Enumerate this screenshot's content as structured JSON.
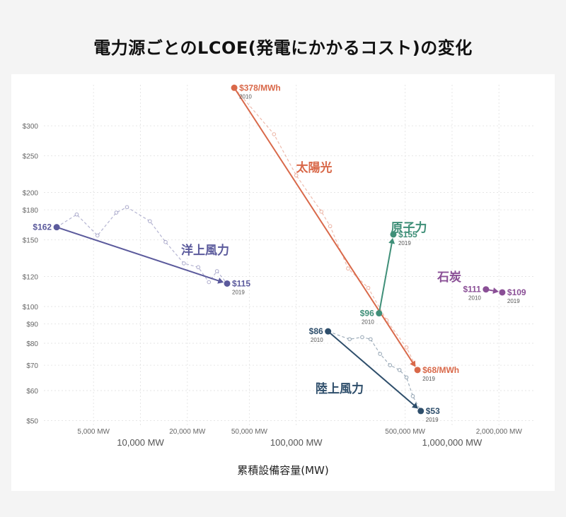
{
  "title": "電力源ごとのLCOE(発電にかかるコスト)の変化",
  "chart_data": {
    "type": "scatter",
    "title": "電力源ごとのLCOE(発電にかかるコスト)の変化",
    "xlabel": "累積設備容量(MW)",
    "ylabel": "",
    "x_scale": "log",
    "y_scale": "log",
    "xlim": [
      2400,
      3400000
    ],
    "ylim": [
      48,
      385
    ],
    "grid": true,
    "x_ticks_minor": [
      {
        "value": 5000,
        "label": "5,000 MW"
      },
      {
        "value": 20000,
        "label": "20,000 MW"
      },
      {
        "value": 50000,
        "label": "50,000 MW"
      },
      {
        "value": 500000,
        "label": "500,000 MW"
      },
      {
        "value": 2000000,
        "label": "2,000,000 MW"
      }
    ],
    "x_ticks_major": [
      {
        "value": 10000,
        "label": "10,000 MW"
      },
      {
        "value": 100000,
        "label": "100,000 MW"
      },
      {
        "value": 1000000,
        "label": "1,000,000 MW"
      }
    ],
    "y_ticks": [
      {
        "value": 300,
        "label": "$300"
      },
      {
        "value": 250,
        "label": "$250"
      },
      {
        "value": 200,
        "label": "$200"
      },
      {
        "value": 180,
        "label": "$180"
      },
      {
        "value": 150,
        "label": "$150"
      },
      {
        "value": 120,
        "label": "$120"
      },
      {
        "value": 100,
        "label": "$100"
      },
      {
        "value": 90,
        "label": "$90"
      },
      {
        "value": 80,
        "label": "$80"
      },
      {
        "value": 70,
        "label": "$70"
      },
      {
        "value": 60,
        "label": "$60"
      },
      {
        "value": 50,
        "label": "$50"
      }
    ],
    "series": [
      {
        "name": "太陽光",
        "color": "#d9694a",
        "start": {
          "x": 40000,
          "y": 378,
          "value_label": "$378/MWh",
          "year": "2010",
          "label_side": "right"
        },
        "end": {
          "x": 600000,
          "y": 68,
          "value_label": "$68/MWh",
          "year": "2019",
          "label_side": "right"
        },
        "annual": [
          [
            40000,
            378
          ],
          [
            72000,
            285
          ],
          [
            100000,
            222
          ],
          [
            145000,
            178
          ],
          [
            165000,
            163
          ],
          [
            215000,
            126
          ],
          [
            290000,
            112
          ],
          [
            380000,
            92
          ],
          [
            510000,
            78
          ],
          [
            600000,
            68
          ]
        ]
      },
      {
        "name": "洋上風力",
        "color": "#5b5a9c",
        "start": {
          "x": 2900,
          "y": 162,
          "value_label": "$162",
          "year": "",
          "label_side": "left"
        },
        "end": {
          "x": 36000,
          "y": 115,
          "value_label": "$115",
          "year": "2019",
          "label_side": "right"
        },
        "annual": [
          [
            2900,
            162
          ],
          [
            3900,
            175
          ],
          [
            5300,
            154
          ],
          [
            7000,
            177
          ],
          [
            8200,
            183
          ],
          [
            11500,
            168
          ],
          [
            14500,
            148
          ],
          [
            19000,
            130
          ],
          [
            23500,
            127
          ],
          [
            27500,
            116
          ],
          [
            31000,
            124
          ],
          [
            36000,
            115
          ]
        ]
      },
      {
        "name": "陸上風力",
        "color": "#2e4e6b",
        "start": {
          "x": 160000,
          "y": 86,
          "value_label": "$86",
          "year": "2010",
          "label_side": "left"
        },
        "end": {
          "x": 630000,
          "y": 53,
          "value_label": "$53",
          "year": "2019",
          "label_side": "right"
        },
        "annual": [
          [
            160000,
            86
          ],
          [
            220000,
            82
          ],
          [
            265000,
            83
          ],
          [
            300000,
            82
          ],
          [
            345000,
            75
          ],
          [
            400000,
            70
          ],
          [
            460000,
            68
          ],
          [
            510000,
            65
          ],
          [
            560000,
            58
          ],
          [
            630000,
            53
          ]
        ]
      },
      {
        "name": "原子力",
        "color": "#3f8f78",
        "start": {
          "x": 340000,
          "y": 96,
          "value_label": "$96",
          "year": "2010",
          "label_side": "left"
        },
        "end": {
          "x": 420000,
          "y": 155,
          "value_label": "$155",
          "year": "2019",
          "label_side": "right"
        },
        "annual": []
      },
      {
        "name": "石炭",
        "color": "#8a4f96",
        "start": {
          "x": 1650000,
          "y": 111,
          "value_label": "$111",
          "year": "2010",
          "label_side": "left"
        },
        "end": {
          "x": 2100000,
          "y": 109,
          "value_label": "$109",
          "year": "2019",
          "label_side": "right"
        },
        "annual": []
      }
    ]
  }
}
